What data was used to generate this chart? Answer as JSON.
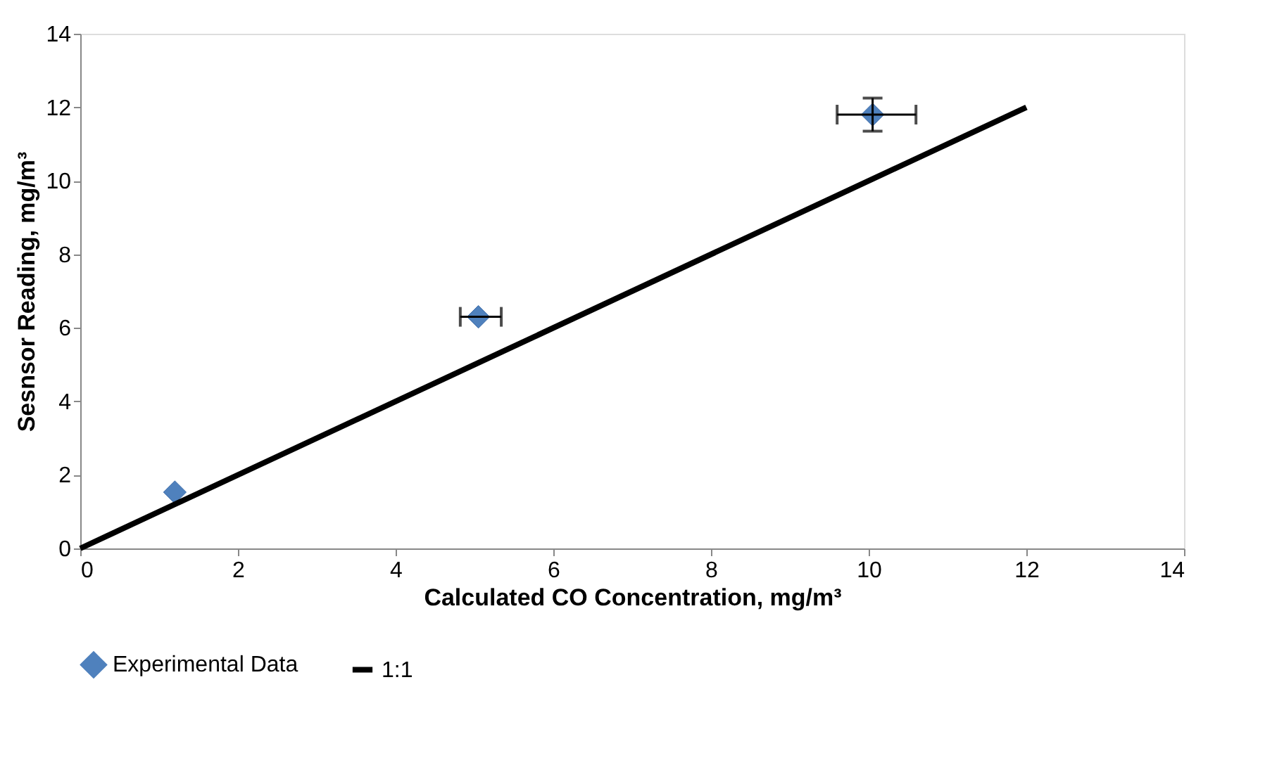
{
  "chart_data": {
    "type": "scatter",
    "xlabel": "Calculated CO Concentration, mg/m³",
    "ylabel": "Sesnsor Reading, mg/m³",
    "xlim": [
      0,
      14
    ],
    "xticks": [
      0,
      2,
      4,
      6,
      8,
      10,
      12,
      14
    ],
    "ylim": [
      0,
      14
    ],
    "yticks": [
      0,
      2,
      4,
      6,
      8,
      10,
      12,
      14
    ],
    "grid": false,
    "legend": "bottom",
    "series": [
      {
        "name": "Experimental Data",
        "type": "scatter",
        "marker": "diamond",
        "color": "#4f81bd",
        "x": [
          1.2,
          5.05,
          10.05
        ],
        "values": [
          1.53,
          6.3,
          11.8
        ],
        "errors": [
          null,
          null,
          0.45
        ],
        "xerrors": [
          null,
          [
            4.82,
            5.34
          ],
          [
            9.6,
            10.6
          ]
        ]
      },
      {
        "name": "1:1",
        "type": "line",
        "marker": "none",
        "line_style": "solid",
        "color": "#000000",
        "x": [
          0,
          12
        ],
        "values": [
          0,
          12
        ]
      }
    ]
  }
}
